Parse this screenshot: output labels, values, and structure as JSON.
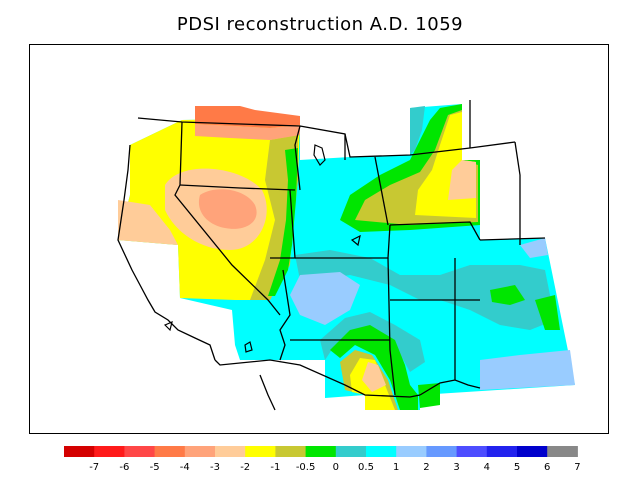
{
  "title": "PDSI reconstruction A.D. 1059",
  "legend": {
    "colors": [
      "#d40000",
      "#ff1a1a",
      "#ff4747",
      "#ff7a47",
      "#ffa37a",
      "#ffcc99",
      "#ffff00",
      "#c8c832",
      "#00e600",
      "#33cccc",
      "#00ffff",
      "#99ccff",
      "#6699ff",
      "#4d4dff",
      "#2222ee",
      "#0000cc",
      "#888888"
    ],
    "labels": [
      "-7",
      "-6",
      "-5",
      "-4",
      "-3",
      "-2",
      "-1",
      "-0.5",
      "0",
      "0.5",
      "1",
      "2",
      "3",
      "4",
      "5",
      "6",
      "7"
    ]
  },
  "palette": {
    "extreme_dry": "#d40000",
    "severe_dry": "#ff7a47",
    "moderate_dry": "#ffa37a",
    "mild_dry": "#ffcc99",
    "incipient_dry": "#ffff00",
    "near_normal_dry": "#c8c832",
    "near_normal": "#00e600",
    "near_normal_wet": "#33cccc",
    "incipient_wet": "#00ffff",
    "mild_wet": "#99ccff"
  }
}
